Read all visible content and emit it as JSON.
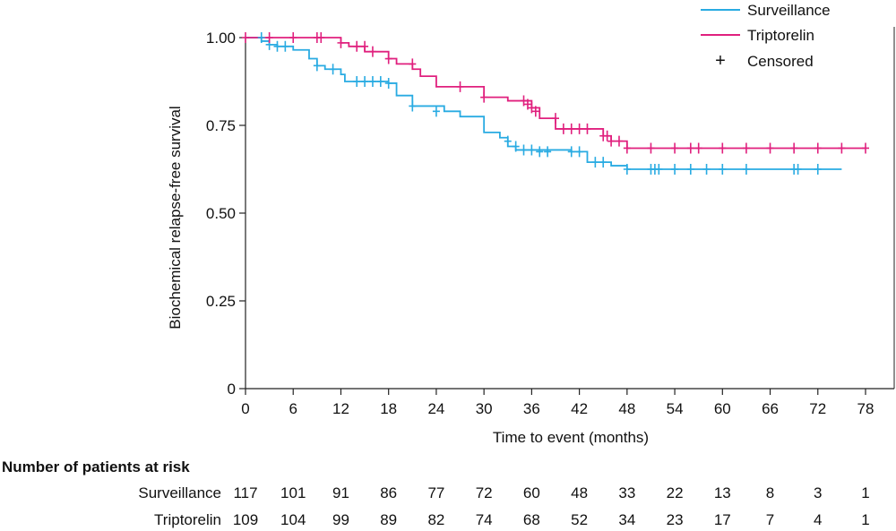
{
  "chart_data": {
    "type": "line",
    "chart_subtype": "kaplan-meier",
    "xlabel": "Time to event (months)",
    "ylabel": "Biochemical relapse-free survival",
    "xlim": [
      0,
      78
    ],
    "ylim": [
      0,
      1
    ],
    "x_ticks": [
      0,
      6,
      12,
      18,
      24,
      30,
      36,
      42,
      48,
      54,
      60,
      66,
      72,
      78
    ],
    "x_tick_labels": [
      "0",
      "6",
      "12",
      "18",
      "24",
      "30",
      "36",
      "42",
      "48",
      "54",
      "60",
      "66",
      "72",
      "78"
    ],
    "y_ticks": [
      0,
      0.25,
      0.5,
      0.75,
      1.0
    ],
    "y_tick_labels": [
      "0",
      "0.25",
      "0.50",
      "0.75",
      "1.00"
    ],
    "grid": false,
    "legend_position": "top-right",
    "censored_label": "Censored",
    "series": [
      {
        "name": "Surveillance",
        "color": "#29abe2",
        "end_x": 75,
        "steps": [
          [
            0,
            1.0
          ],
          [
            2,
            0.99
          ],
          [
            3,
            0.98
          ],
          [
            4,
            0.975
          ],
          [
            6,
            0.965
          ],
          [
            8,
            0.94
          ],
          [
            9,
            0.92
          ],
          [
            10,
            0.91
          ],
          [
            12,
            0.895
          ],
          [
            12.5,
            0.875
          ],
          [
            18,
            0.87
          ],
          [
            19,
            0.835
          ],
          [
            21,
            0.805
          ],
          [
            25,
            0.79
          ],
          [
            27,
            0.775
          ],
          [
            30,
            0.73
          ],
          [
            32,
            0.715
          ],
          [
            33,
            0.69
          ],
          [
            34,
            0.68
          ],
          [
            41,
            0.675
          ],
          [
            43,
            0.645
          ],
          [
            46,
            0.635
          ],
          [
            48,
            0.625
          ]
        ],
        "censored": [
          [
            2,
            1.0
          ],
          [
            3,
            0.98
          ],
          [
            4,
            0.975
          ],
          [
            5,
            0.975
          ],
          [
            9,
            0.92
          ],
          [
            11,
            0.91
          ],
          [
            14,
            0.875
          ],
          [
            15,
            0.875
          ],
          [
            16,
            0.875
          ],
          [
            17,
            0.875
          ],
          [
            18,
            0.87
          ],
          [
            21,
            0.805
          ],
          [
            24,
            0.79
          ],
          [
            33,
            0.705
          ],
          [
            34,
            0.69
          ],
          [
            35,
            0.68
          ],
          [
            36,
            0.68
          ],
          [
            37,
            0.675
          ],
          [
            38,
            0.675
          ],
          [
            41,
            0.675
          ],
          [
            42,
            0.675
          ],
          [
            44,
            0.645
          ],
          [
            45,
            0.645
          ],
          [
            48,
            0.625
          ],
          [
            51,
            0.625
          ],
          [
            51.5,
            0.625
          ],
          [
            52,
            0.625
          ],
          [
            54,
            0.625
          ],
          [
            56,
            0.625
          ],
          [
            58,
            0.625
          ],
          [
            60,
            0.625
          ],
          [
            63,
            0.625
          ],
          [
            69,
            0.625
          ],
          [
            69.5,
            0.625
          ],
          [
            72,
            0.625
          ]
        ]
      },
      {
        "name": "Triptorelin",
        "color": "#e0207e",
        "end_x": 78,
        "steps": [
          [
            0,
            1.0
          ],
          [
            12,
            0.985
          ],
          [
            13,
            0.975
          ],
          [
            15,
            0.96
          ],
          [
            18,
            0.94
          ],
          [
            19,
            0.925
          ],
          [
            21,
            0.91
          ],
          [
            22,
            0.89
          ],
          [
            24,
            0.86
          ],
          [
            30,
            0.83
          ],
          [
            33,
            0.82
          ],
          [
            36,
            0.8
          ],
          [
            37,
            0.77
          ],
          [
            39,
            0.74
          ],
          [
            45,
            0.72
          ],
          [
            46,
            0.705
          ],
          [
            48,
            0.685
          ]
        ],
        "censored": [
          [
            0,
            1.0
          ],
          [
            3,
            1.0
          ],
          [
            6,
            1.0
          ],
          [
            9,
            1.0
          ],
          [
            9.5,
            1.0
          ],
          [
            12,
            0.985
          ],
          [
            14,
            0.975
          ],
          [
            15,
            0.975
          ],
          [
            16,
            0.96
          ],
          [
            18,
            0.94
          ],
          [
            21,
            0.925
          ],
          [
            27,
            0.86
          ],
          [
            30,
            0.83
          ],
          [
            35,
            0.82
          ],
          [
            35.5,
            0.81
          ],
          [
            36,
            0.8
          ],
          [
            36.5,
            0.79
          ],
          [
            39,
            0.77
          ],
          [
            40,
            0.74
          ],
          [
            41,
            0.74
          ],
          [
            42,
            0.74
          ],
          [
            43,
            0.74
          ],
          [
            45,
            0.72
          ],
          [
            45.5,
            0.72
          ],
          [
            46,
            0.705
          ],
          [
            47,
            0.705
          ],
          [
            48,
            0.685
          ],
          [
            51,
            0.685
          ],
          [
            54,
            0.685
          ],
          [
            56,
            0.685
          ],
          [
            57,
            0.685
          ],
          [
            60,
            0.685
          ],
          [
            63,
            0.685
          ],
          [
            66,
            0.685
          ],
          [
            69,
            0.685
          ],
          [
            72,
            0.685
          ],
          [
            75,
            0.685
          ],
          [
            78,
            0.685
          ]
        ]
      }
    ],
    "risk_table": {
      "title": "Number of patients at risk",
      "rows": [
        {
          "label": "Surveillance",
          "values": [
            "117",
            "101",
            "91",
            "86",
            "77",
            "72",
            "60",
            "48",
            "33",
            "22",
            "13",
            "8",
            "3",
            "1"
          ]
        },
        {
          "label": "Triptorelin",
          "values": [
            "109",
            "104",
            "99",
            "89",
            "82",
            "74",
            "68",
            "52",
            "34",
            "23",
            "17",
            "7",
            "4",
            "1"
          ]
        }
      ]
    }
  }
}
